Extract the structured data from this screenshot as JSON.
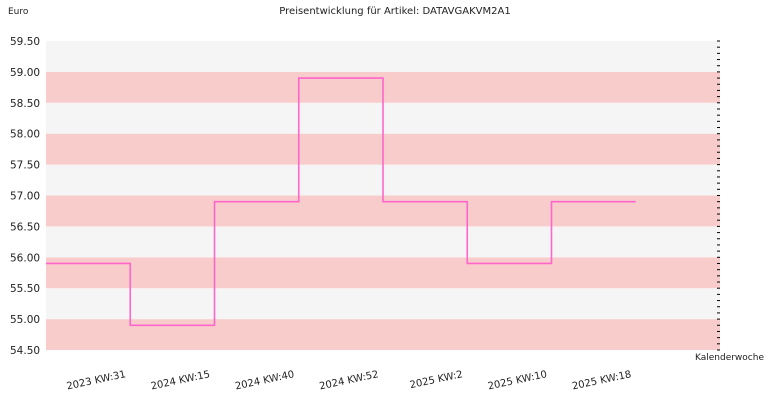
{
  "chart_data": {
    "type": "line",
    "step": true,
    "title": "Preisentwicklung für Artikel: DATAVGAKVM2A1",
    "ylabel": "Euro",
    "xlabel": "Kalenderwoche",
    "ylim": [
      54.5,
      59.5
    ],
    "yticks": [
      "54.50",
      "55.00",
      "55.50",
      "56.00",
      "56.50",
      "57.00",
      "57.50",
      "58.00",
      "58.50",
      "59.00",
      "59.50"
    ],
    "categories": [
      "2023 KW:31",
      "2024 KW:15",
      "2024 KW:40",
      "2024 KW:52",
      "2025 KW:2",
      "2025 KW:10",
      "2025 KW:18"
    ],
    "series": [
      {
        "values": [
          55.9,
          54.9,
          56.9,
          58.9,
          56.9,
          55.9,
          56.9
        ]
      }
    ],
    "line_color": "#ff66cc",
    "band_colors": [
      "#f9cccc",
      "#f5f5f5"
    ]
  }
}
